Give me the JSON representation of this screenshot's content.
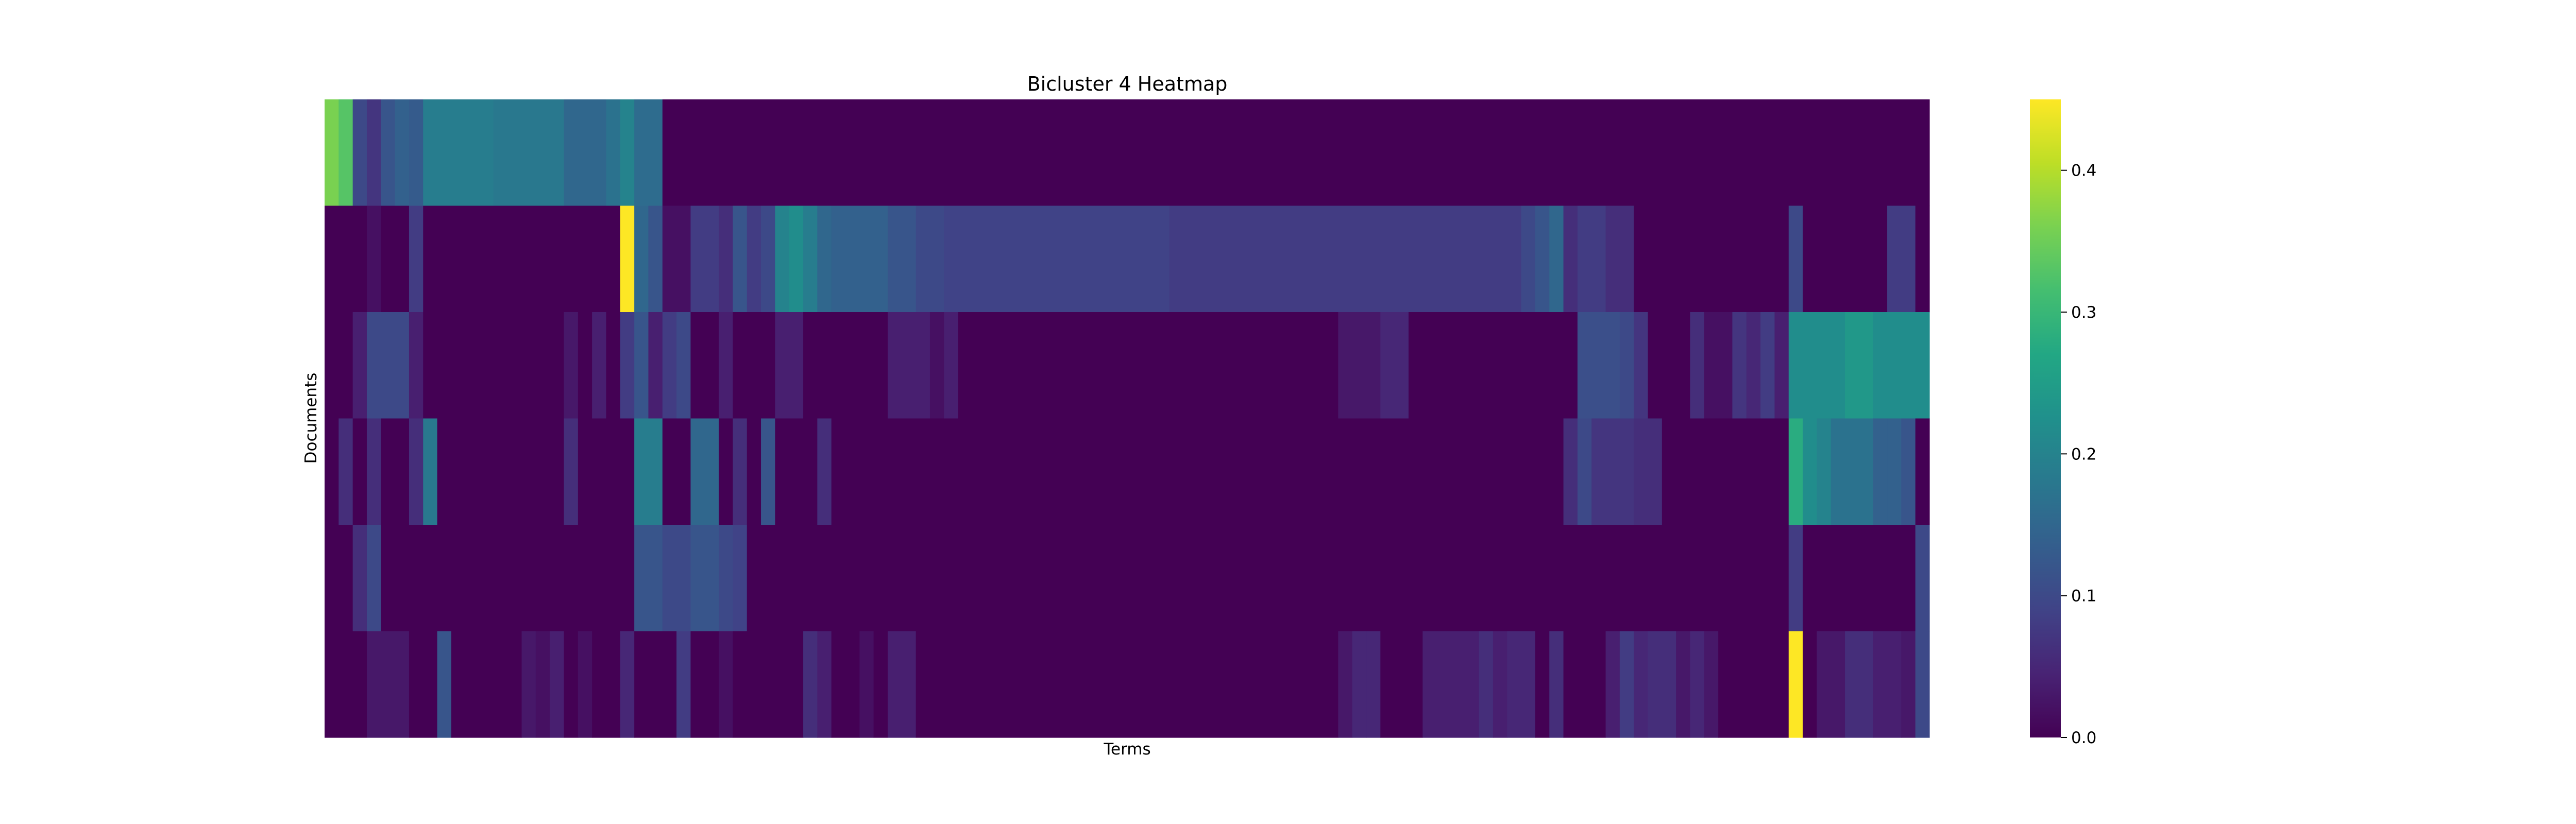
{
  "chart_data": {
    "type": "heatmap",
    "title": "Bicluster 4 Heatmap",
    "xlabel": "Terms",
    "ylabel": "Documents",
    "colormap": "viridis",
    "vmin": 0,
    "vmax": 0.45,
    "colorbar_ticks": [
      {
        "value": 0.0,
        "label": "0.0"
      },
      {
        "value": 0.1,
        "label": "0.1"
      },
      {
        "value": 0.2,
        "label": "0.2"
      },
      {
        "value": 0.3,
        "label": "0.3"
      },
      {
        "value": 0.4,
        "label": "0.4"
      }
    ],
    "n_cols": 114,
    "segment_values": [
      [
        [
          0,
          1,
          0.36
        ],
        [
          1,
          2,
          0.33
        ],
        [
          2,
          3,
          0.1
        ],
        [
          3,
          4,
          0.07
        ],
        [
          4,
          5,
          0.12
        ],
        [
          5,
          6,
          0.14
        ],
        [
          6,
          7,
          0.13
        ],
        [
          7,
          12,
          0.19
        ],
        [
          12,
          17,
          0.18
        ],
        [
          17,
          20,
          0.15
        ],
        [
          20,
          21,
          0.17
        ],
        [
          21,
          22,
          0.2
        ],
        [
          22,
          24,
          0.16
        ],
        [
          24,
          114,
          0
        ]
      ],
      [
        [
          0,
          3,
          0
        ],
        [
          3,
          4,
          0.02
        ],
        [
          4,
          6,
          0
        ],
        [
          6,
          7,
          0.08
        ],
        [
          7,
          21,
          0
        ],
        [
          21,
          22,
          0.45
        ],
        [
          22,
          23,
          0.15
        ],
        [
          23,
          24,
          0.12
        ],
        [
          24,
          26,
          0.02
        ],
        [
          26,
          28,
          0.08
        ],
        [
          28,
          29,
          0.06
        ],
        [
          29,
          30,
          0.12
        ],
        [
          30,
          31,
          0.08
        ],
        [
          31,
          32,
          0.1
        ],
        [
          32,
          33,
          0.2
        ],
        [
          33,
          34,
          0.22
        ],
        [
          34,
          35,
          0.19
        ],
        [
          35,
          36,
          0.15
        ],
        [
          36,
          40,
          0.14
        ],
        [
          40,
          42,
          0.12
        ],
        [
          42,
          44,
          0.1
        ],
        [
          44,
          60,
          0.09
        ],
        [
          60,
          72,
          0.08
        ],
        [
          72,
          85,
          0.08
        ],
        [
          85,
          86,
          0.1
        ],
        [
          86,
          87,
          0.12
        ],
        [
          87,
          88,
          0.15
        ],
        [
          88,
          89,
          0.06
        ],
        [
          89,
          91,
          0.08
        ],
        [
          91,
          93,
          0.06
        ],
        [
          93,
          104,
          0
        ],
        [
          104,
          105,
          0.1
        ],
        [
          105,
          111,
          0
        ],
        [
          111,
          113,
          0.08
        ],
        [
          113,
          114,
          0
        ]
      ],
      [
        [
          0,
          2,
          0
        ],
        [
          2,
          3,
          0.04
        ],
        [
          3,
          6,
          0.1
        ],
        [
          6,
          7,
          0.04
        ],
        [
          7,
          17,
          0
        ],
        [
          17,
          18,
          0.03
        ],
        [
          18,
          19,
          0
        ],
        [
          19,
          20,
          0.04
        ],
        [
          20,
          21,
          0
        ],
        [
          21,
          22,
          0.08
        ],
        [
          22,
          23,
          0.12
        ],
        [
          23,
          24,
          0.04
        ],
        [
          24,
          25,
          0.08
        ],
        [
          25,
          26,
          0.1
        ],
        [
          26,
          28,
          0
        ],
        [
          28,
          29,
          0.04
        ],
        [
          29,
          32,
          0
        ],
        [
          32,
          34,
          0.04
        ],
        [
          34,
          40,
          0
        ],
        [
          40,
          43,
          0.04
        ],
        [
          43,
          44,
          0.02
        ],
        [
          44,
          45,
          0.04
        ],
        [
          45,
          72,
          0
        ],
        [
          72,
          75,
          0.03
        ],
        [
          75,
          77,
          0.05
        ],
        [
          77,
          89,
          0
        ],
        [
          89,
          92,
          0.11
        ],
        [
          92,
          93,
          0.1
        ],
        [
          93,
          94,
          0.07
        ],
        [
          94,
          97,
          0
        ],
        [
          97,
          98,
          0.06
        ],
        [
          98,
          100,
          0.02
        ],
        [
          100,
          101,
          0.07
        ],
        [
          101,
          102,
          0.05
        ],
        [
          102,
          103,
          0.08
        ],
        [
          103,
          104,
          0.04
        ],
        [
          104,
          108,
          0.22
        ],
        [
          108,
          110,
          0.24
        ],
        [
          110,
          114,
          0.22
        ]
      ],
      [
        [
          0,
          1,
          0
        ],
        [
          1,
          2,
          0.06
        ],
        [
          2,
          3,
          0
        ],
        [
          3,
          4,
          0.06
        ],
        [
          4,
          6,
          0
        ],
        [
          6,
          7,
          0.06
        ],
        [
          7,
          8,
          0.18
        ],
        [
          8,
          17,
          0
        ],
        [
          17,
          18,
          0.06
        ],
        [
          18,
          22,
          0
        ],
        [
          22,
          24,
          0.19
        ],
        [
          24,
          26,
          0
        ],
        [
          26,
          28,
          0.15
        ],
        [
          28,
          29,
          0
        ],
        [
          29,
          30,
          0.06
        ],
        [
          30,
          31,
          0
        ],
        [
          31,
          32,
          0.12
        ],
        [
          32,
          35,
          0
        ],
        [
          35,
          36,
          0.06
        ],
        [
          36,
          88,
          0
        ],
        [
          88,
          89,
          0.06
        ],
        [
          89,
          90,
          0.1
        ],
        [
          90,
          93,
          0.07
        ],
        [
          93,
          95,
          0.06
        ],
        [
          95,
          104,
          0
        ],
        [
          104,
          105,
          0.28
        ],
        [
          105,
          106,
          0.22
        ],
        [
          106,
          107,
          0.2
        ],
        [
          107,
          110,
          0.17
        ],
        [
          110,
          111,
          0.14
        ],
        [
          111,
          112,
          0.14
        ],
        [
          112,
          113,
          0.12
        ],
        [
          113,
          114,
          0
        ]
      ],
      [
        [
          0,
          2,
          0
        ],
        [
          2,
          3,
          0.06
        ],
        [
          3,
          4,
          0.1
        ],
        [
          4,
          22,
          0
        ],
        [
          22,
          24,
          0.12
        ],
        [
          24,
          26,
          0.1
        ],
        [
          26,
          28,
          0.12
        ],
        [
          28,
          29,
          0.1
        ],
        [
          29,
          30,
          0.09
        ],
        [
          30,
          104,
          0
        ],
        [
          104,
          105,
          0.08
        ],
        [
          105,
          113,
          0
        ],
        [
          113,
          114,
          0.1
        ]
      ],
      [
        [
          0,
          3,
          0
        ],
        [
          3,
          4,
          0.03
        ],
        [
          4,
          6,
          0.03
        ],
        [
          6,
          8,
          0
        ],
        [
          8,
          9,
          0.12
        ],
        [
          9,
          14,
          0
        ],
        [
          14,
          15,
          0.03
        ],
        [
          15,
          16,
          0.02
        ],
        [
          16,
          17,
          0.04
        ],
        [
          17,
          18,
          0
        ],
        [
          18,
          19,
          0.02
        ],
        [
          19,
          21,
          0
        ],
        [
          21,
          22,
          0.05
        ],
        [
          22,
          25,
          0
        ],
        [
          25,
          26,
          0.08
        ],
        [
          26,
          28,
          0
        ],
        [
          28,
          29,
          0.02
        ],
        [
          29,
          34,
          0
        ],
        [
          34,
          35,
          0.06
        ],
        [
          35,
          36,
          0.04
        ],
        [
          36,
          38,
          0
        ],
        [
          38,
          39,
          0.02
        ],
        [
          39,
          40,
          0
        ],
        [
          40,
          42,
          0.04
        ],
        [
          42,
          72,
          0
        ],
        [
          72,
          73,
          0.03
        ],
        [
          73,
          74,
          0.05
        ],
        [
          74,
          75,
          0.05
        ],
        [
          75,
          78,
          0
        ],
        [
          78,
          82,
          0.04
        ],
        [
          82,
          83,
          0.06
        ],
        [
          83,
          84,
          0.04
        ],
        [
          84,
          86,
          0.05
        ],
        [
          86,
          87,
          0
        ],
        [
          87,
          88,
          0.06
        ],
        [
          88,
          91,
          0
        ],
        [
          91,
          92,
          0.04
        ],
        [
          92,
          93,
          0.08
        ],
        [
          93,
          94,
          0.05
        ],
        [
          94,
          96,
          0.06
        ],
        [
          96,
          97,
          0.03
        ],
        [
          97,
          98,
          0.05
        ],
        [
          98,
          99,
          0.03
        ],
        [
          99,
          104,
          0
        ],
        [
          104,
          105,
          0.45
        ],
        [
          105,
          106,
          0
        ],
        [
          106,
          108,
          0.03
        ],
        [
          108,
          110,
          0.06
        ],
        [
          110,
          112,
          0.04
        ],
        [
          112,
          113,
          0.03
        ],
        [
          113,
          114,
          0.1
        ]
      ]
    ]
  }
}
